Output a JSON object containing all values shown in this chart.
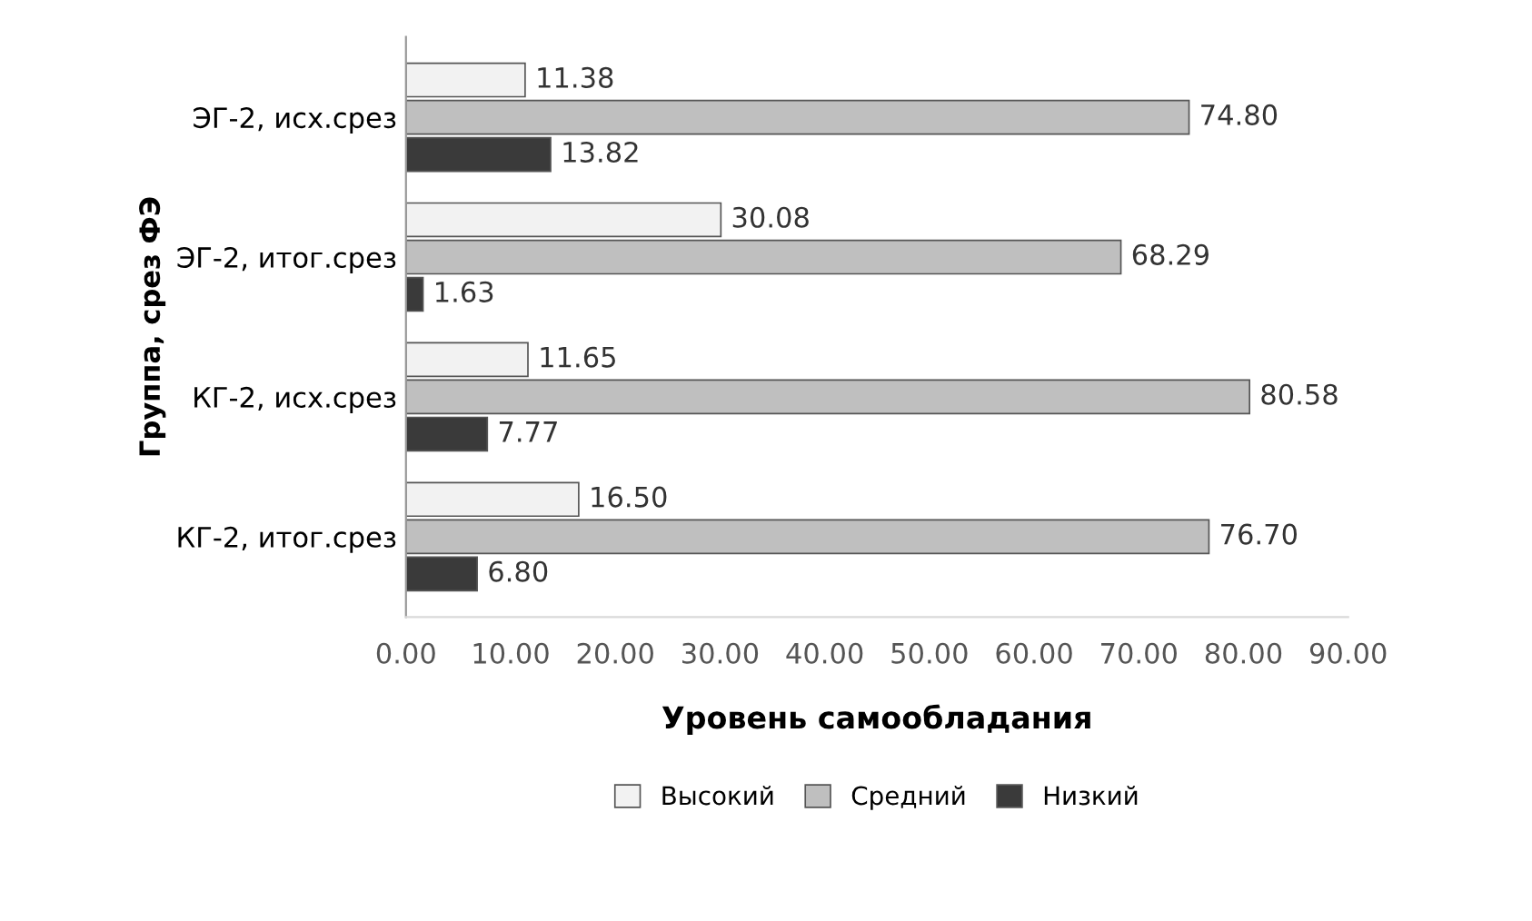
{
  "chart_data": {
    "type": "bar",
    "orientation": "horizontal",
    "xlabel": "Уровень самообладания",
    "ylabel": "Группа, срез ФЭ",
    "categories": [
      "ЭГ-2, исх.срез",
      "ЭГ-2, итог.срез",
      "КГ-2, исх.срез",
      "КГ-2, итог.срез"
    ],
    "series": [
      {
        "name": "Высокий",
        "color": "#f2f2f2",
        "values": [
          11.38,
          30.08,
          11.65,
          16.5
        ],
        "value_labels": [
          "11.38",
          "30.08",
          "11.65",
          "16.50"
        ]
      },
      {
        "name": "Средний",
        "color": "#bfbfbf",
        "values": [
          74.8,
          68.29,
          80.58,
          76.7
        ],
        "value_labels": [
          "74.80",
          "68.29",
          "80.58",
          "76.70"
        ]
      },
      {
        "name": "Низкий",
        "color": "#3a3a3a",
        "values": [
          13.82,
          1.63,
          7.77,
          6.8
        ],
        "value_labels": [
          "13.82",
          "1.63",
          "7.77",
          "6.80"
        ]
      }
    ],
    "xlim": [
      0,
      90
    ],
    "xticks": [
      {
        "value": 0,
        "label": "0.00"
      },
      {
        "value": 10,
        "label": "10.00"
      },
      {
        "value": 20,
        "label": "20.00"
      },
      {
        "value": 30,
        "label": "30.00"
      },
      {
        "value": 40,
        "label": "40.00"
      },
      {
        "value": 50,
        "label": "50.00"
      },
      {
        "value": 60,
        "label": "60.00"
      },
      {
        "value": 70,
        "label": "70.00"
      },
      {
        "value": 80,
        "label": "80.00"
      },
      {
        "value": 90,
        "label": "90.00"
      }
    ],
    "legend": "bottom",
    "grid": false
  }
}
